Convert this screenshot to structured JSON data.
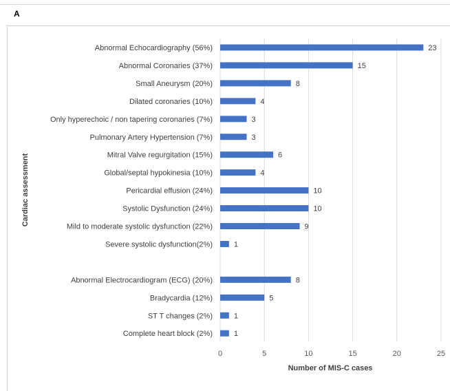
{
  "panel_label": "A",
  "chart_data": {
    "type": "bar",
    "orientation": "horizontal",
    "title": "",
    "xlabel": "Number of MIS-C cases",
    "ylabel": "Cardiac assessment",
    "xlim": [
      0,
      25
    ],
    "xticks": [
      0,
      5,
      10,
      15,
      20,
      25
    ],
    "grid": "vertical",
    "bar_color": "#4472c4",
    "categories": [
      "Abnormal Echocardiography (56%)",
      "Abnormal Coronaries (37%)",
      "Small Aneurysm (20%)",
      "Dilated coronaries (10%)",
      "Only hyperechoic / non tapering coronaries (7%)",
      "Pulmonary Artery Hypertension  (7%)",
      "Mitral Valve regurgitation (15%)",
      "Global/septal hypokinesia (10%)",
      "Pericardial effusion (24%)",
      "Systolic Dysfunction (24%)",
      "Mild to moderate systolic dysfunction (22%)",
      "Severe systolic dysfunction(2%)",
      "",
      "Abnormal Electrocardiogram (ECG) (20%)",
      "Bradycardia (12%)",
      "ST T changes (2%)",
      "Complete heart block (2%)"
    ],
    "values": [
      23,
      15,
      8,
      4,
      3,
      3,
      6,
      4,
      10,
      10,
      9,
      1,
      null,
      8,
      5,
      1,
      1
    ]
  }
}
